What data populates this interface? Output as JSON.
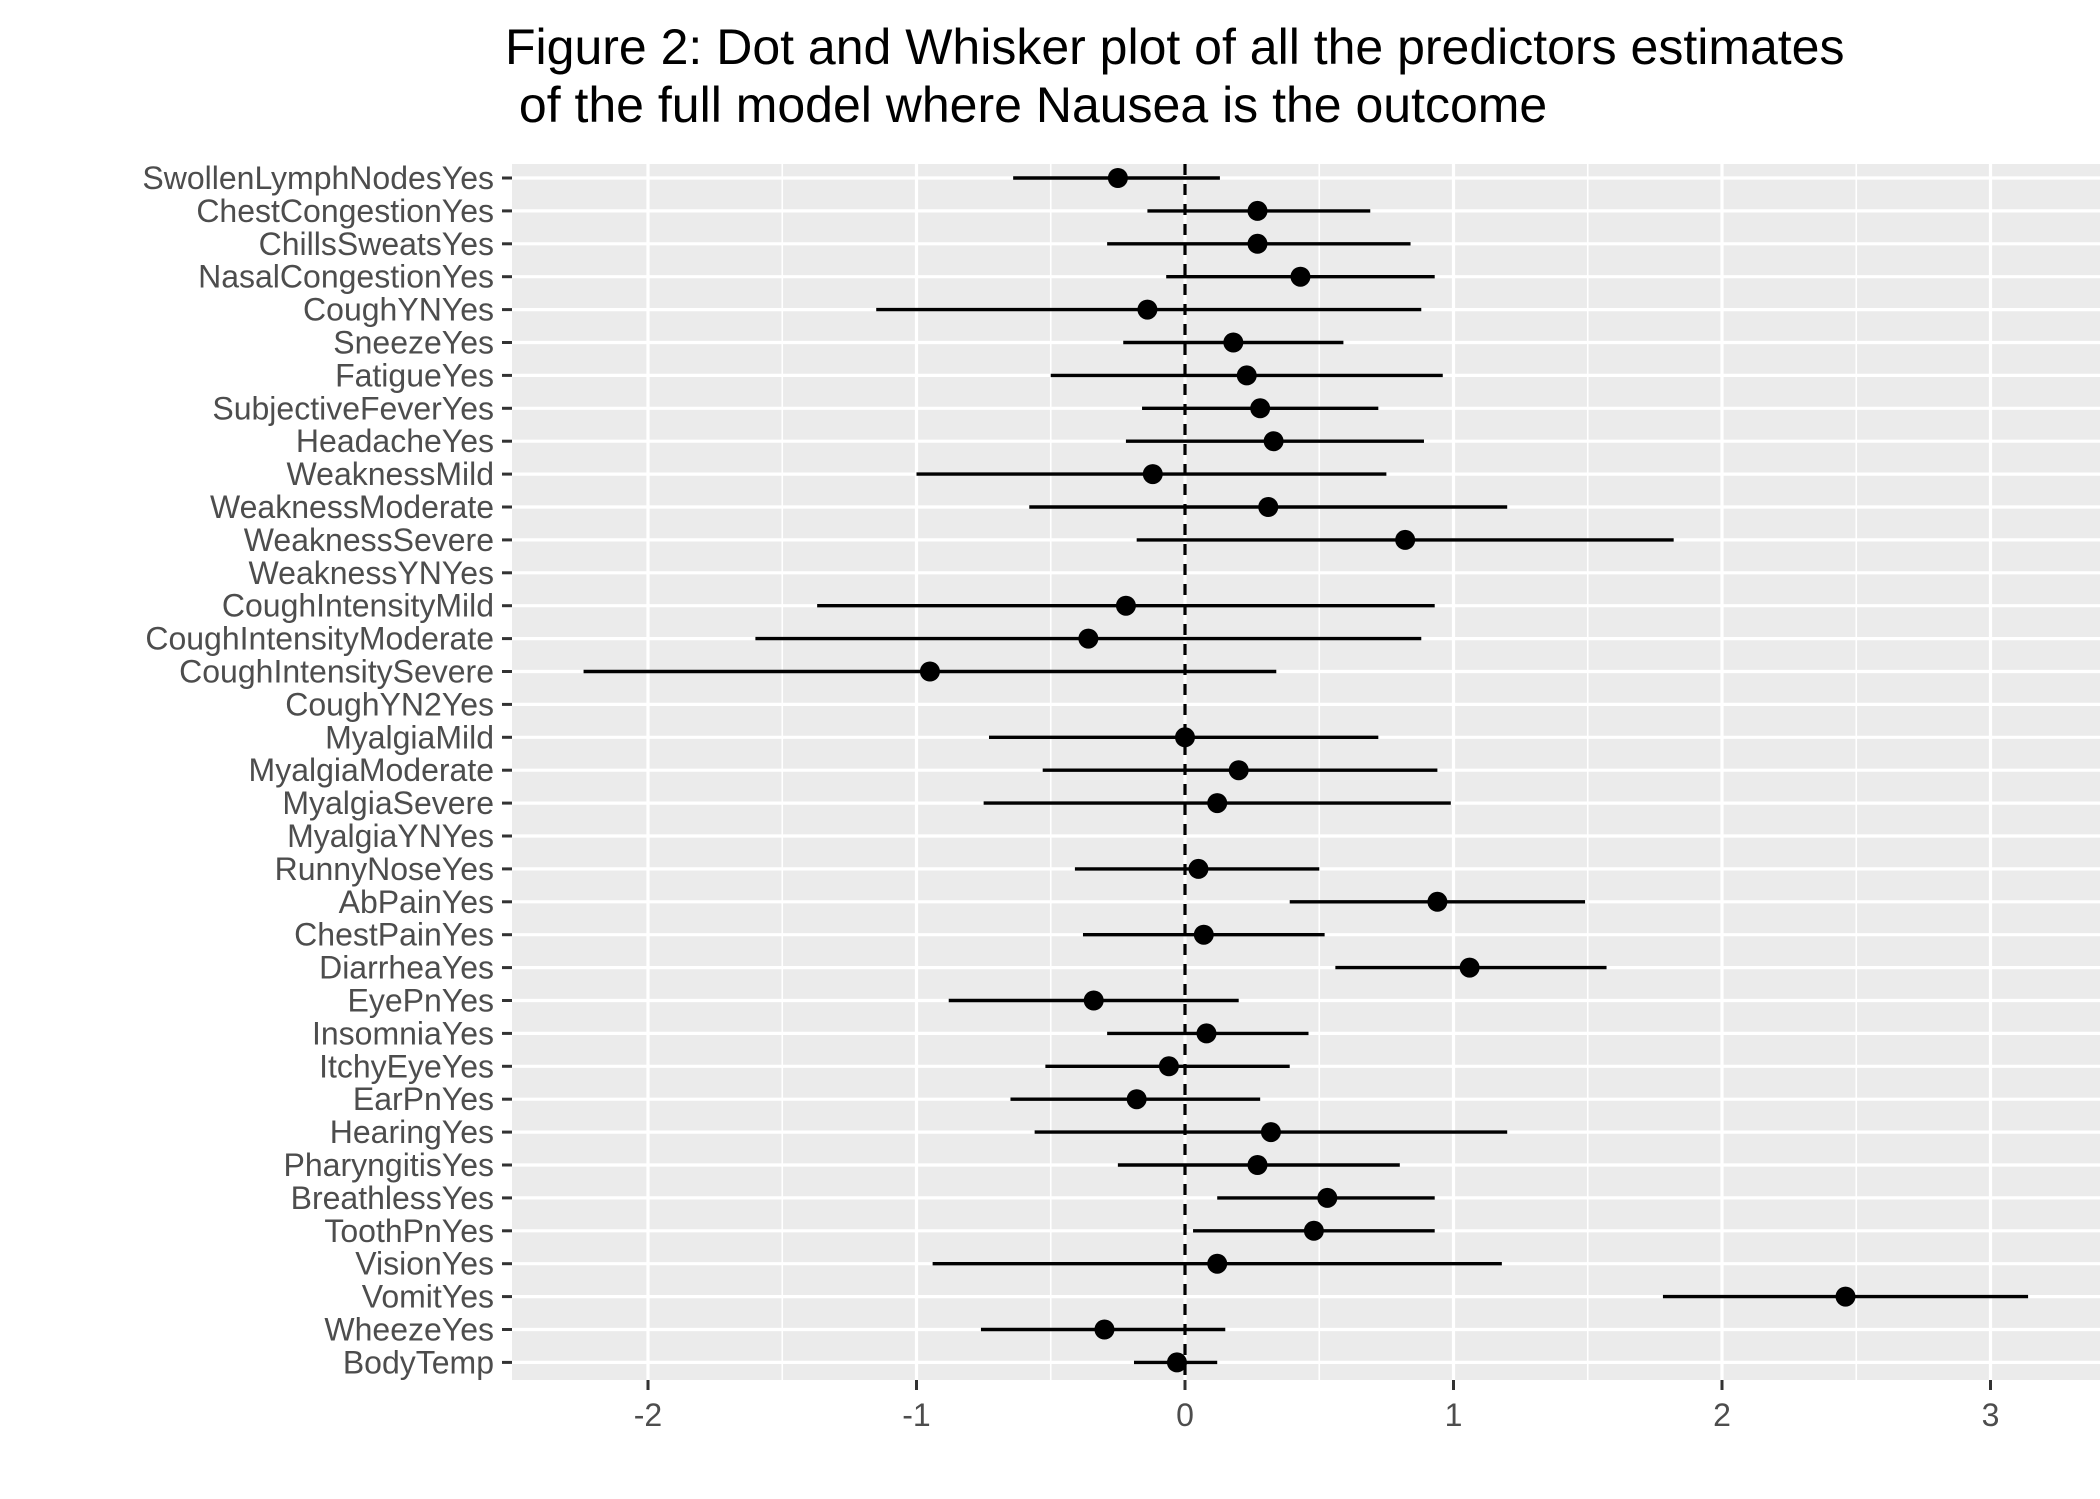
{
  "chart_data": {
    "type": "scatter",
    "title": "Figure 2: Dot and Whisker plot of all the predictors estimates\n of the full model where Nausea is the outcome",
    "xlabel": "",
    "ylabel": "",
    "xlim": [
      -2.5,
      3.5
    ],
    "x_ticks": [
      -2,
      -1,
      0,
      1,
      2,
      3
    ],
    "x_tick_labels": [
      "-2",
      "-1",
      "0",
      "1",
      "2",
      "3"
    ],
    "reference_line": {
      "x": 0,
      "style": "dashed"
    },
    "grid": true,
    "panel_background": "#ebebeb",
    "point_color": "#000000",
    "points": [
      {
        "term": "SwollenLymphNodesYes",
        "estimate": -0.25,
        "low": -0.64,
        "high": 0.13
      },
      {
        "term": "ChestCongestionYes",
        "estimate": 0.27,
        "low": -0.14,
        "high": 0.69
      },
      {
        "term": "ChillsSweatsYes",
        "estimate": 0.27,
        "low": -0.29,
        "high": 0.84
      },
      {
        "term": "NasalCongestionYes",
        "estimate": 0.43,
        "low": -0.07,
        "high": 0.93
      },
      {
        "term": "CoughYNYes",
        "estimate": -0.14,
        "low": -1.15,
        "high": 0.88
      },
      {
        "term": "SneezeYes",
        "estimate": 0.18,
        "low": -0.23,
        "high": 0.59
      },
      {
        "term": "FatigueYes",
        "estimate": 0.23,
        "low": -0.5,
        "high": 0.96
      },
      {
        "term": "SubjectiveFeverYes",
        "estimate": 0.28,
        "low": -0.16,
        "high": 0.72
      },
      {
        "term": "HeadacheYes",
        "estimate": 0.33,
        "low": -0.22,
        "high": 0.89
      },
      {
        "term": "WeaknessMild",
        "estimate": -0.12,
        "low": -1.0,
        "high": 0.75
      },
      {
        "term": "WeaknessModerate",
        "estimate": 0.31,
        "low": -0.58,
        "high": 1.2
      },
      {
        "term": "WeaknessSevere",
        "estimate": 0.82,
        "low": -0.18,
        "high": 1.82
      },
      {
        "term": "WeaknessYNYes",
        "estimate": null,
        "low": null,
        "high": null
      },
      {
        "term": "CoughIntensityMild",
        "estimate": -0.22,
        "low": -1.37,
        "high": 0.93
      },
      {
        "term": "CoughIntensityModerate",
        "estimate": -0.36,
        "low": -1.6,
        "high": 0.88
      },
      {
        "term": "CoughIntensitySevere",
        "estimate": -0.95,
        "low": -2.24,
        "high": 0.34
      },
      {
        "term": "CoughYN2Yes",
        "estimate": null,
        "low": null,
        "high": null
      },
      {
        "term": "MyalgiaMild",
        "estimate": 0.0,
        "low": -0.73,
        "high": 0.72
      },
      {
        "term": "MyalgiaModerate",
        "estimate": 0.2,
        "low": -0.53,
        "high": 0.94
      },
      {
        "term": "MyalgiaSevere",
        "estimate": 0.12,
        "low": -0.75,
        "high": 0.99
      },
      {
        "term": "MyalgiaYNYes",
        "estimate": null,
        "low": null,
        "high": null
      },
      {
        "term": "RunnyNoseYes",
        "estimate": 0.05,
        "low": -0.41,
        "high": 0.5
      },
      {
        "term": "AbPainYes",
        "estimate": 0.94,
        "low": 0.39,
        "high": 1.49
      },
      {
        "term": "ChestPainYes",
        "estimate": 0.07,
        "low": -0.38,
        "high": 0.52
      },
      {
        "term": "DiarrheaYes",
        "estimate": 1.06,
        "low": 0.56,
        "high": 1.57
      },
      {
        "term": "EyePnYes",
        "estimate": -0.34,
        "low": -0.88,
        "high": 0.2
      },
      {
        "term": "InsomniaYes",
        "estimate": 0.08,
        "low": -0.29,
        "high": 0.46
      },
      {
        "term": "ItchyEyeYes",
        "estimate": -0.06,
        "low": -0.52,
        "high": 0.39
      },
      {
        "term": "EarPnYes",
        "estimate": -0.18,
        "low": -0.65,
        "high": 0.28
      },
      {
        "term": "HearingYes",
        "estimate": 0.32,
        "low": -0.56,
        "high": 1.2
      },
      {
        "term": "PharyngitisYes",
        "estimate": 0.27,
        "low": -0.25,
        "high": 0.8
      },
      {
        "term": "BreathlessYes",
        "estimate": 0.53,
        "low": 0.12,
        "high": 0.93
      },
      {
        "term": "ToothPnYes",
        "estimate": 0.48,
        "low": 0.03,
        "high": 0.93
      },
      {
        "term": "VisionYes",
        "estimate": 0.12,
        "low": -0.94,
        "high": 1.18
      },
      {
        "term": "VomitYes",
        "estimate": 2.46,
        "low": 1.78,
        "high": 3.14
      },
      {
        "term": "WheezeYes",
        "estimate": -0.3,
        "low": -0.76,
        "high": 0.15
      },
      {
        "term": "BodyTemp",
        "estimate": -0.03,
        "low": -0.19,
        "high": 0.12
      }
    ]
  }
}
